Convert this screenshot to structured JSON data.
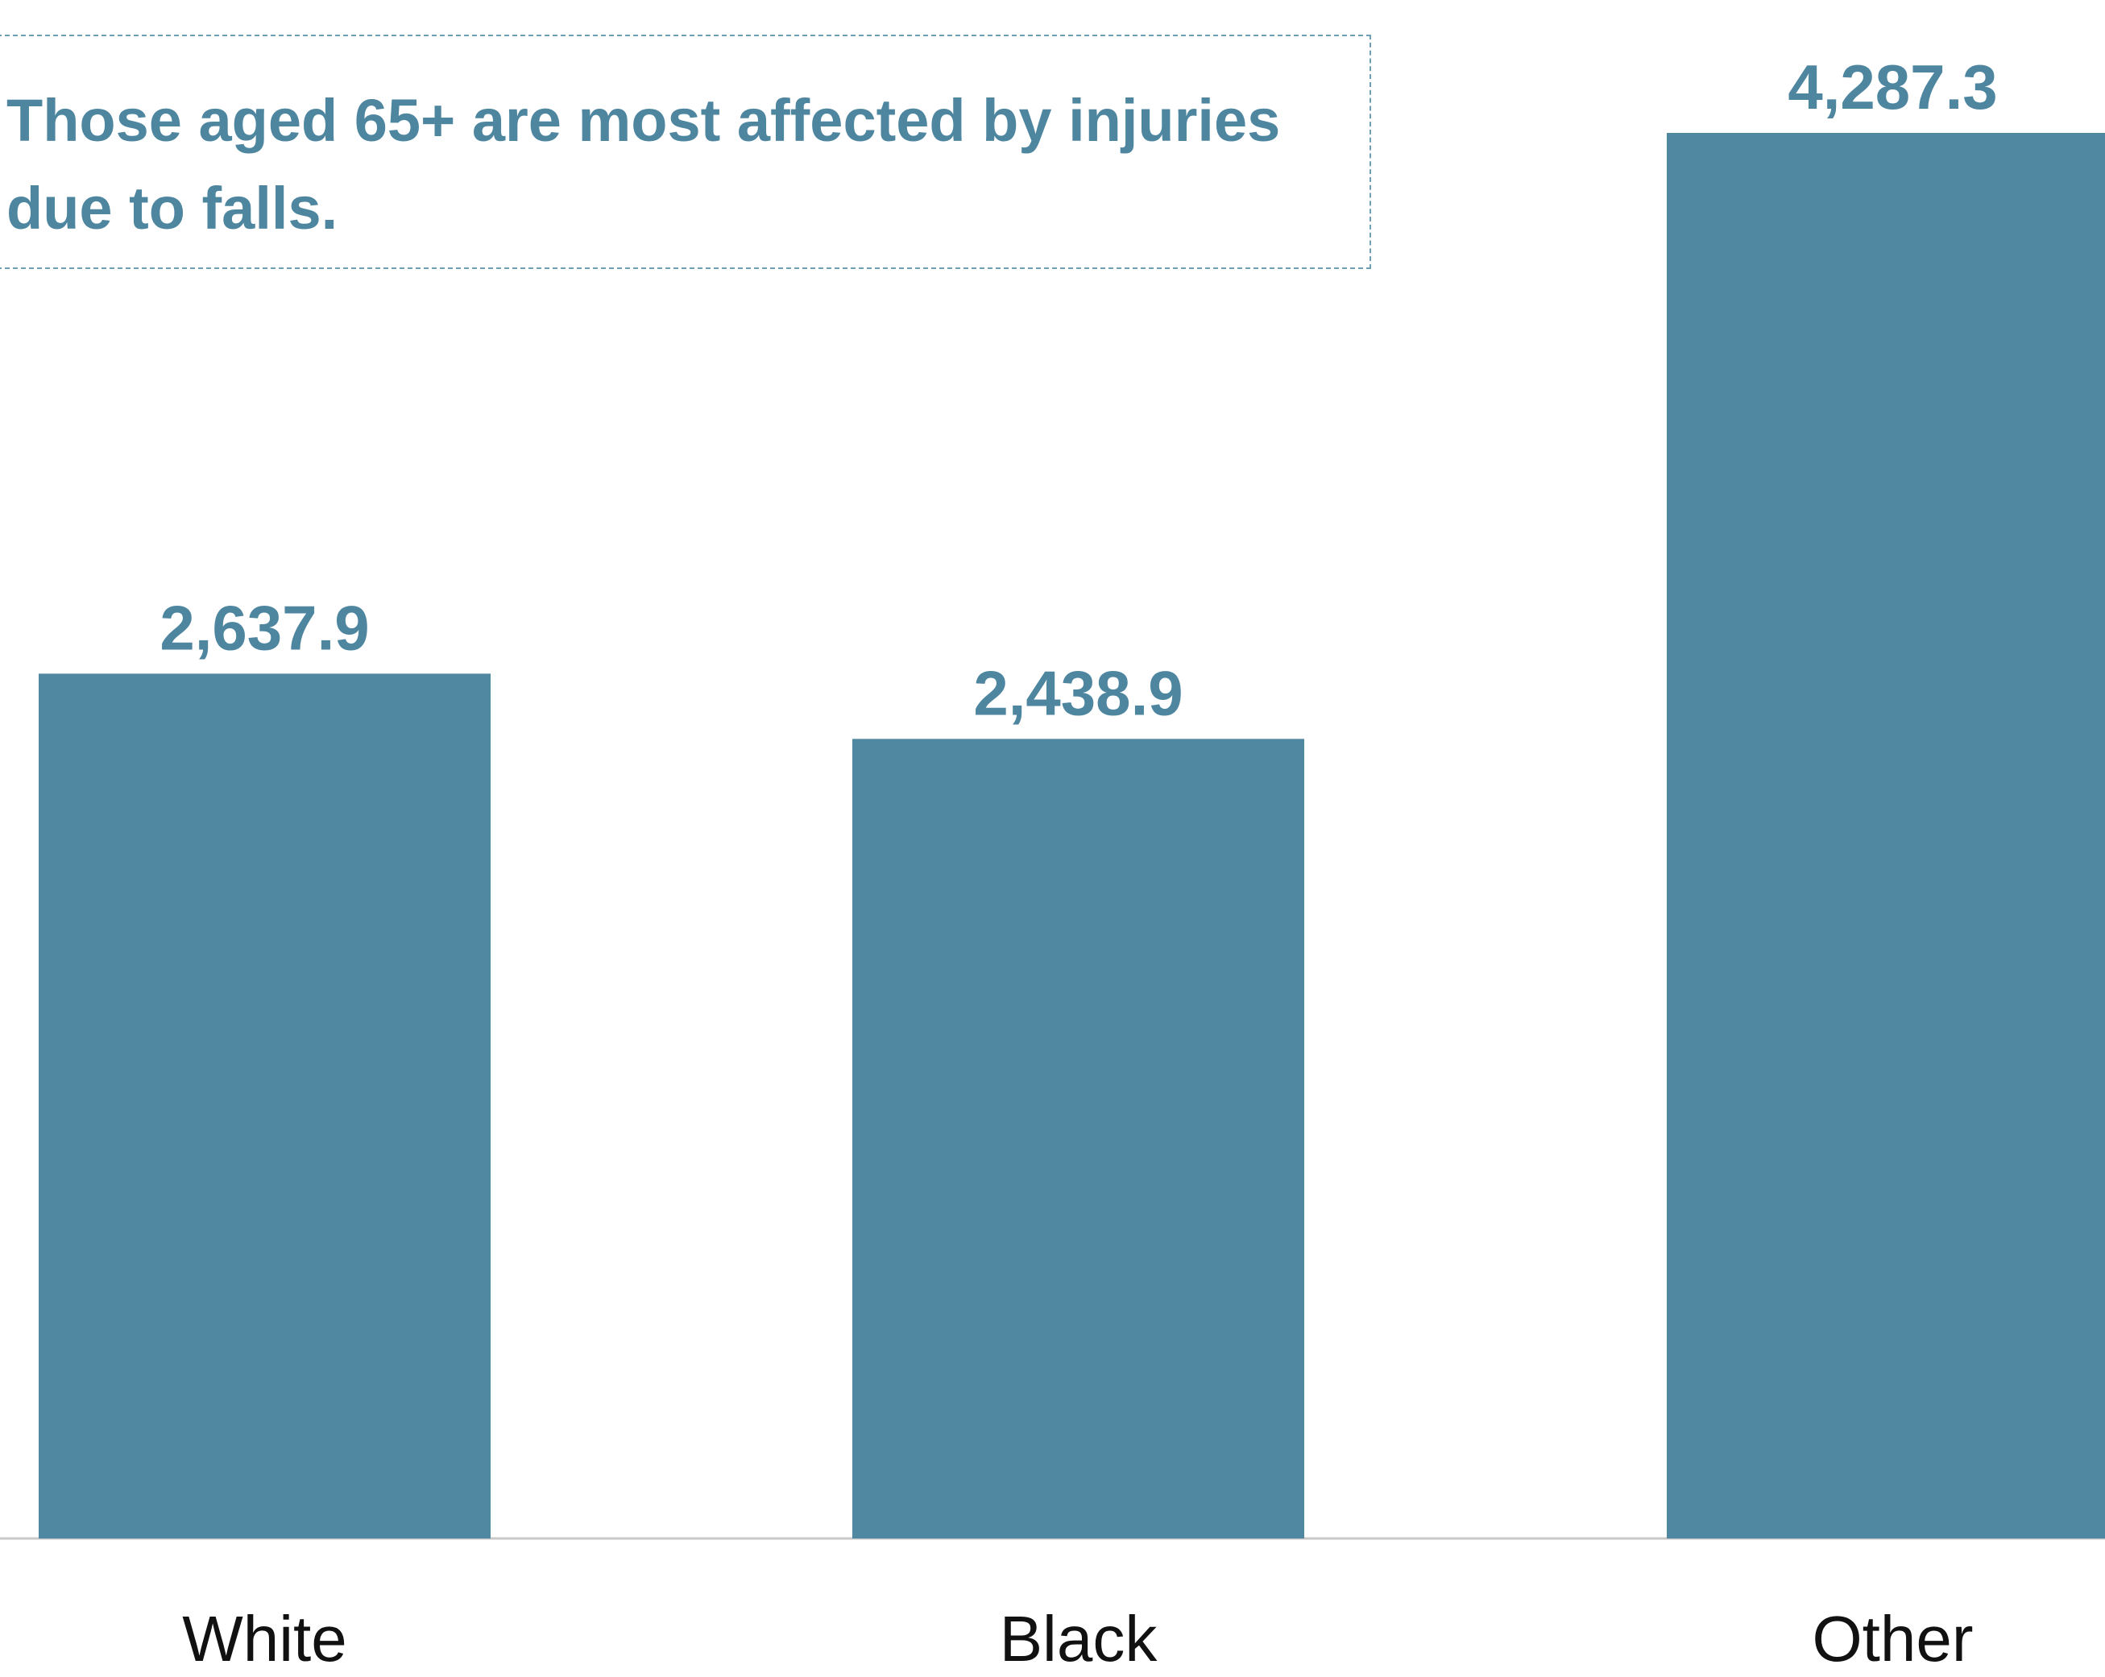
{
  "callout": {
    "line1": "Those aged 65+ are most affected by injuries",
    "line2": "due to falls."
  },
  "colors": {
    "bar": "#5088a2",
    "label": "#4e86a0",
    "category": "#111111",
    "baseline": "#c8c8c8",
    "callout_border": "#6f9fb5"
  },
  "chart_data": {
    "type": "bar",
    "categories": [
      "White",
      "Black",
      "Other"
    ],
    "values": [
      2637.9,
      2438.9,
      4287.3
    ],
    "value_labels": [
      "2,637.9",
      "2,438.9",
      "4,287.3"
    ],
    "title": "",
    "xlabel": "",
    "ylabel": "",
    "ylim": [
      0,
      4287.3
    ],
    "grid": false,
    "legend": "none"
  }
}
